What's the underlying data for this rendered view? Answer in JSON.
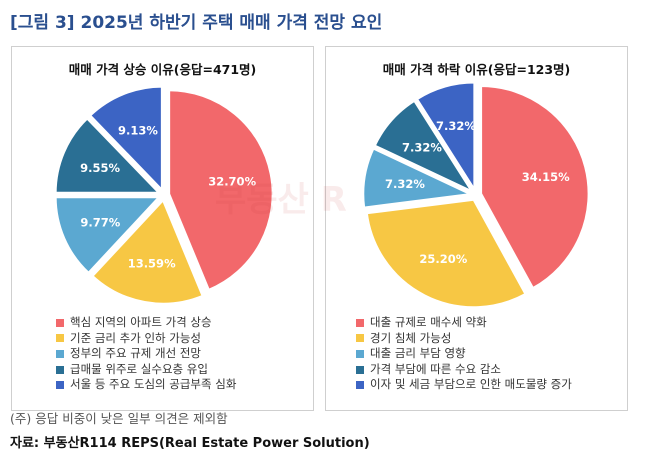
{
  "figure_title": "[그림 3] 2025년 하반기 주택 매매 가격 전망 요인",
  "watermark": "부동산 R",
  "note": "(주) 응답 비중이 낮은 일부 의견은 제외함",
  "source": "자료: 부동산R114 REPS(Real Estate Power Solution)",
  "chart_data": [
    {
      "type": "pie",
      "title": "매매 가격 상승 이유(응답=471명)",
      "slices": [
        {
          "label": "핵심 지역의 아파트 가격 상승",
          "value": 32.7,
          "display": "32.70%",
          "color": "#f2686b"
        },
        {
          "label": "기준 금리 추가 인하 가능성",
          "value": 13.59,
          "display": "13.59%",
          "color": "#f7c744"
        },
        {
          "label": "정부의 주요 규제 개선 전망",
          "value": 9.77,
          "display": "9.77%",
          "color": "#5ba8d1"
        },
        {
          "label": "급매물 위주로 실수요층 유입",
          "value": 9.55,
          "display": "9.55%",
          "color": "#2a6f94"
        },
        {
          "label": "서울 등 주요 도심의 공급부족 심화",
          "value": 9.13,
          "display": "9.13%",
          "color": "#3c64c4"
        }
      ]
    },
    {
      "type": "pie",
      "title": "매매 가격 하락 이유(응답=123명)",
      "slices": [
        {
          "label": "대출 규제로 매수세 약화",
          "value": 34.15,
          "display": "34.15%",
          "color": "#f2686b"
        },
        {
          "label": "경기 침체 가능성",
          "value": 25.2,
          "display": "25.20%",
          "color": "#f7c744"
        },
        {
          "label": "대출 금리 부담 영향",
          "value": 7.32,
          "display": "7.32%",
          "color": "#5ba8d1"
        },
        {
          "label": "가격 부담에 따른 수요 감소",
          "value": 7.32,
          "display": "7.32%",
          "color": "#2a6f94"
        },
        {
          "label": "이자 및 세금 부담으로 인한 매도물량 증가",
          "value": 7.32,
          "display": "7.32%",
          "color": "#3c64c4"
        }
      ]
    }
  ]
}
